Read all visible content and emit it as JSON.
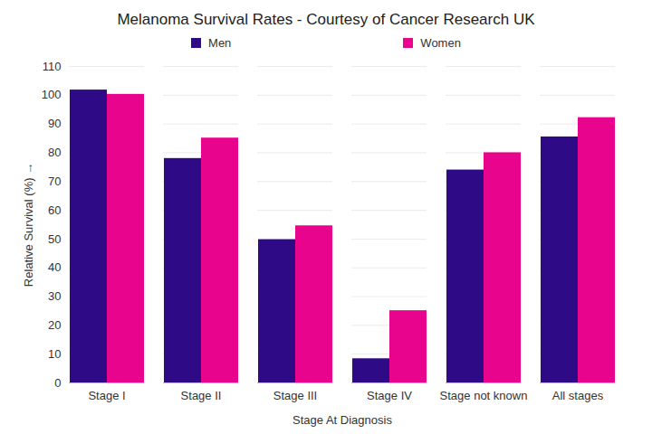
{
  "chart_data": {
    "type": "bar",
    "title": "Melanoma Survival Rates - Courtesy of Cancer Research UK",
    "x_label": "Stage At Diagnosis",
    "y_label": "Relative Survival (%)",
    "categories": [
      "Stage I",
      "Stage II",
      "Stage III",
      "Stage IV",
      "Stage not known",
      "All stages"
    ],
    "series": [
      {
        "name": "Men",
        "color": "#2f0a86",
        "values": [
          101.8,
          78,
          49.8,
          8.4,
          74,
          85.5
        ]
      },
      {
        "name": "Women",
        "color": "#e8048c",
        "values": [
          100.3,
          85.1,
          54.6,
          25.1,
          80,
          92.2
        ]
      }
    ],
    "ylim": [
      0,
      110
    ],
    "yticks": [
      0,
      10,
      20,
      30,
      40,
      50,
      60,
      70,
      80,
      90,
      100,
      110
    ],
    "grid": true,
    "legend": "top"
  }
}
